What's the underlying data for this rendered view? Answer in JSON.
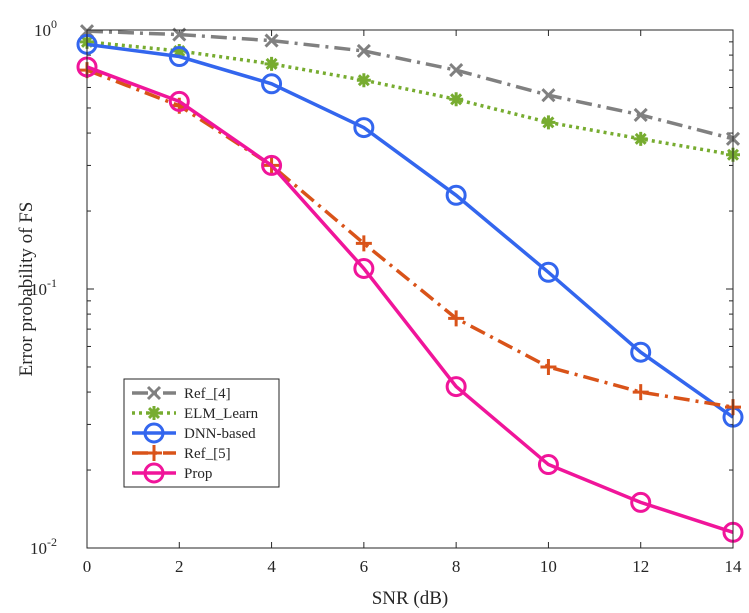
{
  "chart_data": {
    "type": "line",
    "xlabel": "SNR (dB)",
    "ylabel": "Error probability of FS",
    "x": [
      0,
      2,
      4,
      6,
      8,
      10,
      12,
      14
    ],
    "xlim": [
      0,
      14
    ],
    "ylim": [
      0.01,
      1
    ],
    "yscale": "log",
    "x_ticks": [
      "0",
      "2",
      "4",
      "6",
      "8",
      "10",
      "12",
      "14"
    ],
    "y_ticks": [
      {
        "base": "10",
        "exp": "0"
      },
      {
        "base": "10",
        "exp": "-1"
      },
      {
        "base": "10",
        "exp": "-2"
      }
    ],
    "grid": false,
    "legend_position": "lower-left",
    "series": [
      {
        "name": "Ref_[4]",
        "color": "#808080",
        "dash": "dash-dot",
        "marker": "x",
        "values": [
          0.99,
          0.96,
          0.91,
          0.83,
          0.7,
          0.56,
          0.47,
          0.38
        ]
      },
      {
        "name": "ELM_Learn",
        "color": "#77AC30",
        "dash": "dotted",
        "marker": "asterisk",
        "values": [
          0.9,
          0.83,
          0.74,
          0.64,
          0.54,
          0.44,
          0.38,
          0.33
        ]
      },
      {
        "name": "DNN-based",
        "color": "#3366EE",
        "dash": "solid",
        "marker": "circle",
        "values": [
          0.88,
          0.79,
          0.62,
          0.42,
          0.23,
          0.116,
          0.057,
          0.032
        ]
      },
      {
        "name": "Ref_[5]",
        "color": "#D95319",
        "dash": "dash-dot",
        "marker": "plus",
        "values": [
          0.7,
          0.51,
          0.3,
          0.15,
          0.077,
          0.05,
          0.04,
          0.035
        ]
      },
      {
        "name": "Prop",
        "color": "#F0159A",
        "dash": "solid",
        "marker": "circle",
        "values": [
          0.72,
          0.53,
          0.3,
          0.12,
          0.042,
          0.021,
          0.015,
          0.0115
        ]
      }
    ]
  }
}
